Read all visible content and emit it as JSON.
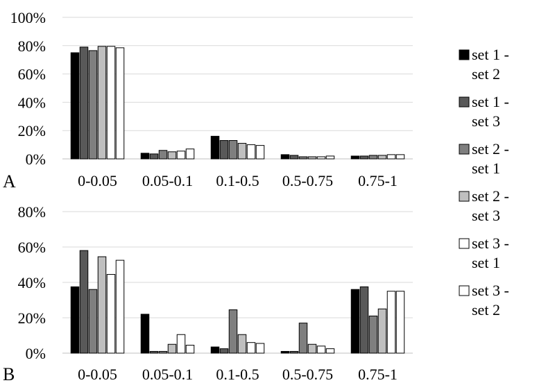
{
  "chart_data": [
    {
      "type": "bar",
      "panel_label": "A",
      "categories": [
        "0-0.05",
        "0.05-0.1",
        "0.1-0.5",
        "0.5-0.75",
        "0.75-1"
      ],
      "ylim": [
        0,
        1
      ],
      "yticks": [
        "0%",
        "20%",
        "40%",
        "60%",
        "80%",
        "100%"
      ],
      "grid": true,
      "series": [
        {
          "name": "set 1 - set 2",
          "values": [
            0.75,
            0.04,
            0.16,
            0.03,
            0.02
          ]
        },
        {
          "name": "set 1 - set 3",
          "values": [
            0.79,
            0.035,
            0.13,
            0.025,
            0.02
          ]
        },
        {
          "name": "set 2 - set 1",
          "values": [
            0.765,
            0.06,
            0.13,
            0.015,
            0.025
          ]
        },
        {
          "name": "set 2 - set 3",
          "values": [
            0.795,
            0.05,
            0.11,
            0.015,
            0.025
          ]
        },
        {
          "name": "set 3 - set 1",
          "values": [
            0.795,
            0.055,
            0.1,
            0.015,
            0.03
          ]
        },
        {
          "name": "set 3 - set 2",
          "values": [
            0.785,
            0.07,
            0.095,
            0.02,
            0.03
          ]
        }
      ]
    },
    {
      "type": "bar",
      "panel_label": "B",
      "categories": [
        "0-0.05",
        "0.05-0.1",
        "0.1-0.5",
        "0.5-0.75",
        "0.75-1"
      ],
      "ylim": [
        0,
        0.8
      ],
      "yticks": [
        "0%",
        "20%",
        "40%",
        "60%",
        "80%"
      ],
      "grid": true,
      "series": [
        {
          "name": "set 1 - set 2",
          "values": [
            0.375,
            0.22,
            0.035,
            0.01,
            0.36
          ]
        },
        {
          "name": "set 1 - set 3",
          "values": [
            0.58,
            0.01,
            0.025,
            0.01,
            0.375
          ]
        },
        {
          "name": "set 2 - set 1",
          "values": [
            0.36,
            0.01,
            0.245,
            0.17,
            0.21
          ]
        },
        {
          "name": "set 2 - set 3",
          "values": [
            0.545,
            0.05,
            0.105,
            0.05,
            0.25
          ]
        },
        {
          "name": "set 3 - set 1",
          "values": [
            0.445,
            0.105,
            0.06,
            0.04,
            0.35
          ]
        },
        {
          "name": "set 3 - set 2",
          "values": [
            0.525,
            0.045,
            0.055,
            0.025,
            0.35
          ]
        }
      ]
    }
  ],
  "legend": {
    "placement": "right",
    "items": [
      {
        "line1": "set 1 -",
        "line2": "set 2",
        "color": "#000000"
      },
      {
        "line1": "set 1 -",
        "line2": "set 3",
        "color": "#595959"
      },
      {
        "line1": "set 2 -",
        "line2": "set 1",
        "color": "#7f7f7f"
      },
      {
        "line1": "set 2 -",
        "line2": "set 3",
        "color": "#bfbfbf"
      },
      {
        "line1": "set 3 -",
        "line2": "set 1",
        "color": "#ffffff"
      },
      {
        "line1": "set 3 -",
        "line2": "set 2",
        "color": "#ffffff"
      }
    ]
  }
}
